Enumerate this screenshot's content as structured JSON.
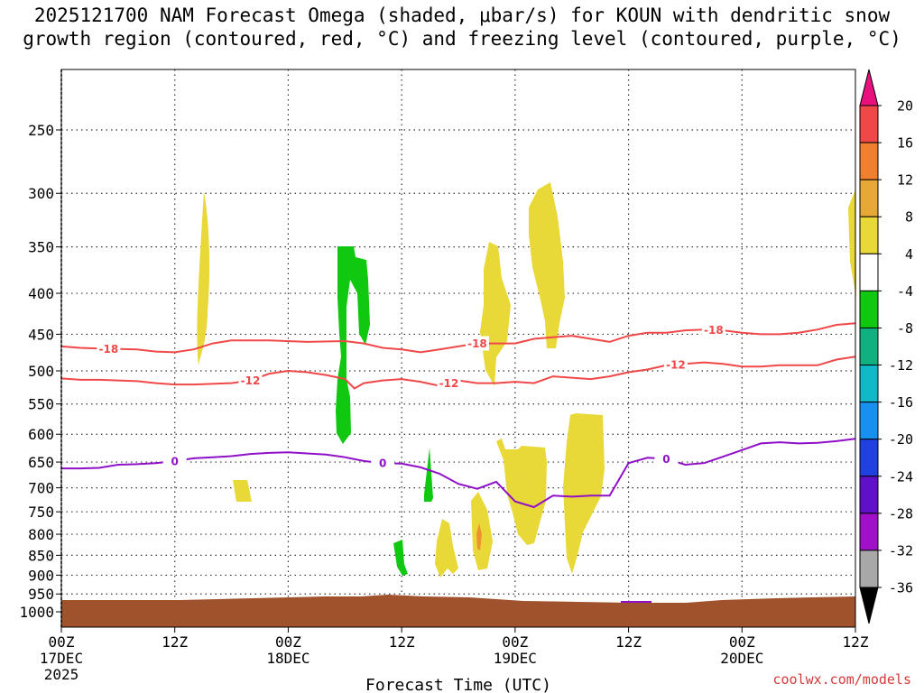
{
  "chart_data": {
    "type": "time-height-cross-section",
    "title_lines": [
      "2025121700 NAM Forecast Omega (shaded, μbar/s) for KOUN with dendritic snow",
      "growth region (contoured, red, °C) and freezing level (contoured, purple, °C)"
    ],
    "xlabel": "Forecast Time (UTC)",
    "credit": "coolwx.com/models",
    "x_ticks": [
      {
        "hour": 0,
        "lines": [
          "00Z",
          "17DEC",
          "2025"
        ]
      },
      {
        "hour": 12,
        "lines": [
          "12Z"
        ]
      },
      {
        "hour": 24,
        "lines": [
          "00Z",
          "18DEC"
        ]
      },
      {
        "hour": 36,
        "lines": [
          "12Z"
        ]
      },
      {
        "hour": 48,
        "lines": [
          "00Z",
          "19DEC"
        ]
      },
      {
        "hour": 60,
        "lines": [
          "12Z"
        ]
      },
      {
        "hour": 72,
        "lines": [
          "00Z",
          "20DEC"
        ]
      },
      {
        "hour": 84,
        "lines": [
          "12Z"
        ]
      }
    ],
    "xlim": [
      0,
      84
    ],
    "y_ticks": [
      "250",
      "300",
      "350",
      "400",
      "450",
      "500",
      "550",
      "600",
      "650",
      "700",
      "750",
      "800",
      "850",
      "900",
      "950",
      "1000"
    ],
    "ylim_hpa": [
      1000,
      200
    ],
    "y_scale": "log-pressure",
    "grid": "dotted",
    "colorbar": {
      "labels": [
        "20",
        "16",
        "12",
        "8",
        "4",
        "-4",
        "-8",
        "-12",
        "-16",
        "-20",
        "-24",
        "-28",
        "-32",
        "-36"
      ],
      "colors": [
        "#e8107c",
        "#f04848",
        "#f08030",
        "#e8a838",
        "#e8d838",
        "#ffffff",
        "#10c810",
        "#10b080",
        "#10b8c8",
        "#1890f0",
        "#2040e0",
        "#6010c8",
        "#a010c8",
        "#a8a8a8",
        "#000000"
      ]
    },
    "contours": [
      {
        "level_label": "-18",
        "color": "#f04848",
        "points": [
          [
            0,
            466
          ],
          [
            2,
            468
          ],
          [
            4,
            469
          ],
          [
            8,
            470
          ],
          [
            10,
            473
          ],
          [
            12,
            474
          ],
          [
            14,
            470
          ],
          [
            16,
            462
          ],
          [
            18,
            458
          ],
          [
            22,
            458
          ],
          [
            26,
            460
          ],
          [
            30,
            459
          ],
          [
            32,
            462
          ],
          [
            34,
            468
          ],
          [
            36,
            470
          ],
          [
            38,
            474
          ],
          [
            40,
            470
          ],
          [
            42,
            466
          ],
          [
            44,
            462
          ],
          [
            46,
            462
          ],
          [
            48,
            462
          ],
          [
            50,
            456
          ],
          [
            52,
            454
          ],
          [
            54,
            452
          ],
          [
            56,
            456
          ],
          [
            58,
            460
          ],
          [
            60,
            452
          ],
          [
            62,
            448
          ],
          [
            64,
            448
          ],
          [
            66,
            445
          ],
          [
            68,
            444
          ],
          [
            70,
            445
          ],
          [
            72,
            448
          ],
          [
            74,
            450
          ],
          [
            76,
            450
          ],
          [
            78,
            448
          ],
          [
            80,
            444
          ],
          [
            82,
            438
          ],
          [
            84,
            436
          ]
        ],
        "label_hours": [
          5,
          44,
          69
        ]
      },
      {
        "level_label": "-12",
        "color": "#f04848",
        "points": [
          [
            0,
            511
          ],
          [
            2,
            513
          ],
          [
            4,
            513
          ],
          [
            8,
            515
          ],
          [
            10,
            518
          ],
          [
            12,
            520
          ],
          [
            14,
            520
          ],
          [
            16,
            519
          ],
          [
            18,
            518
          ],
          [
            20,
            514
          ],
          [
            22,
            504
          ],
          [
            24,
            500
          ],
          [
            26,
            502
          ],
          [
            28,
            506
          ],
          [
            30,
            512
          ],
          [
            31,
            526
          ],
          [
            32,
            518
          ],
          [
            34,
            514
          ],
          [
            36,
            512
          ],
          [
            38,
            516
          ],
          [
            40,
            522
          ],
          [
            42,
            514
          ],
          [
            44,
            518
          ],
          [
            46,
            518
          ],
          [
            48,
            516
          ],
          [
            50,
            518
          ],
          [
            52,
            508
          ],
          [
            54,
            510
          ],
          [
            56,
            512
          ],
          [
            58,
            508
          ],
          [
            60,
            502
          ],
          [
            62,
            498
          ],
          [
            64,
            492
          ],
          [
            66,
            490
          ],
          [
            68,
            488
          ],
          [
            70,
            490
          ],
          [
            72,
            494
          ],
          [
            74,
            494
          ],
          [
            76,
            492
          ],
          [
            78,
            492
          ],
          [
            80,
            492
          ],
          [
            82,
            484
          ],
          [
            84,
            480
          ]
        ],
        "label_hours": [
          20,
          41,
          65
        ]
      },
      {
        "level_label": "0",
        "color": "#9010c8",
        "points": [
          [
            0,
            662
          ],
          [
            2,
            662
          ],
          [
            4,
            661
          ],
          [
            6,
            655
          ],
          [
            8,
            654
          ],
          [
            10,
            652
          ],
          [
            12,
            648
          ],
          [
            14,
            643
          ],
          [
            16,
            641
          ],
          [
            18,
            639
          ],
          [
            20,
            635
          ],
          [
            22,
            633
          ],
          [
            24,
            632
          ],
          [
            26,
            634
          ],
          [
            28,
            636
          ],
          [
            30,
            641
          ],
          [
            32,
            648
          ],
          [
            34,
            652
          ],
          [
            36,
            653
          ],
          [
            38,
            660
          ],
          [
            40,
            672
          ],
          [
            42,
            692
          ],
          [
            44,
            702
          ],
          [
            46,
            688
          ],
          [
            48,
            728
          ],
          [
            50,
            740
          ],
          [
            52,
            716
          ],
          [
            54,
            718
          ],
          [
            56,
            716
          ],
          [
            58,
            716
          ],
          [
            60,
            652
          ],
          [
            62,
            642
          ],
          [
            64,
            644
          ],
          [
            66,
            655
          ],
          [
            68,
            652
          ],
          [
            70,
            640
          ],
          [
            72,
            628
          ],
          [
            74,
            616
          ],
          [
            76,
            614
          ],
          [
            78,
            616
          ],
          [
            80,
            615
          ],
          [
            82,
            612
          ],
          [
            84,
            608
          ]
        ],
        "label_hours": [
          12,
          34,
          64
        ]
      }
    ]
  }
}
